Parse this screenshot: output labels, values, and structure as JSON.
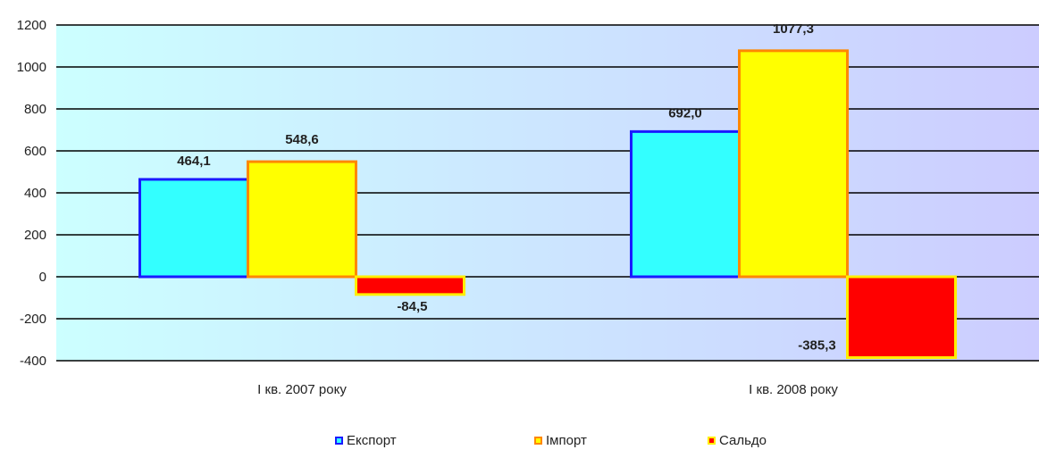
{
  "chart_data": {
    "type": "bar",
    "categories": [
      "І кв. 2007 року",
      "І кв. 2008 року"
    ],
    "series": [
      {
        "name": "Експорт",
        "values": [
          464.1,
          692.0
        ],
        "labels": [
          "464,1",
          "692,0"
        ],
        "fill": "#33ffff",
        "stroke": "#1a1aff"
      },
      {
        "name": "Імпорт",
        "values": [
          548.6,
          1077.3
        ],
        "labels": [
          "548,6",
          "1077,3"
        ],
        "fill": "#ffff00",
        "stroke": "#ff8800"
      },
      {
        "name": "Сальдо",
        "values": [
          -84.5,
          -385.3
        ],
        "labels": [
          "-84,5",
          "-385,3"
        ],
        "fill": "#ff0000",
        "stroke": "#ffee00"
      }
    ],
    "yticks": [
      "1200",
      "1000",
      "800",
      "600",
      "400",
      "200",
      "0",
      "-200",
      "-400"
    ],
    "ylim": [
      -400,
      1200
    ],
    "grid": true,
    "legend": "bottom",
    "background": {
      "left": "#ccffff",
      "right": "#ccccff"
    }
  }
}
